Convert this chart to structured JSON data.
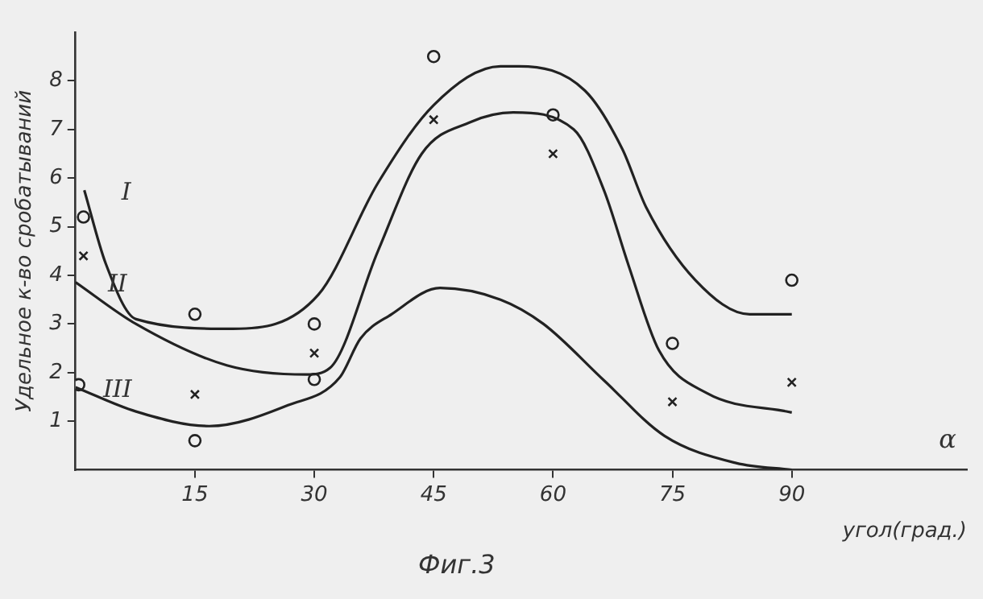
{
  "chart_data": {
    "type": "line",
    "xlabel": "угол(град.)",
    "ylabel": "Удельное к-во сробатываний",
    "xlim": [
      0,
      112
    ],
    "ylim": [
      0,
      9
    ],
    "xticks": [
      15,
      30,
      45,
      60,
      75,
      90
    ],
    "yticks": [
      1,
      2,
      3,
      4,
      5,
      6,
      7,
      8
    ],
    "grid": false,
    "legend": false,
    "marker": "none",
    "line_style": "solid",
    "series": [
      {
        "name": "I",
        "color": "#222222",
        "x": [
          1.1,
          3.8,
          7.6,
          19.8,
          30.5,
          38,
          45,
          53.4,
          55.7,
          64,
          68.7,
          71.7,
          77.9,
          84.7,
          90
        ],
        "values": [
          5.75,
          4.24,
          3.1,
          2.9,
          3.6,
          5.9,
          7.5,
          8.3,
          8.3,
          7.8,
          6.6,
          5.4,
          3.9,
          3.2,
          3.2
        ]
      },
      {
        "name": "II",
        "color": "#222222",
        "x": [
          0,
          7.6,
          19,
          29,
          32,
          38,
          43.5,
          49.6,
          55,
          62.6,
          66.4,
          69.5,
          73.3,
          79.3,
          90
        ],
        "values": [
          3.86,
          3.0,
          2.15,
          1.96,
          2.1,
          4.5,
          6.5,
          7.15,
          7.35,
          7.0,
          5.75,
          4.2,
          2.46,
          1.58,
          1.18
        ]
      },
      {
        "name": "III",
        "color": "#222222",
        "x": [
          0,
          7.6,
          16.8,
          26.7,
          33.2,
          35.8,
          39.7,
          45.8,
          53.4,
          58.8,
          66.4,
          74,
          83,
          90
        ],
        "values": [
          1.7,
          1.2,
          0.9,
          1.33,
          1.9,
          2.7,
          3.2,
          3.74,
          3.5,
          3.0,
          1.84,
          0.7,
          0.14,
          0
        ]
      },
      {
        "type": "scatter",
        "marker": "circle",
        "color": "#222222",
        "x": [
          1,
          15,
          30,
          45,
          60,
          75,
          90
        ],
        "values": [
          5.2,
          3.2,
          3.0,
          8.5,
          7.3,
          2.6,
          3.9
        ]
      },
      {
        "type": "scatter",
        "marker": "cross",
        "color": "#222222",
        "x": [
          1,
          15,
          30,
          45,
          60,
          75,
          90
        ],
        "values": [
          4.4,
          1.55,
          2.4,
          7.2,
          6.5,
          1.4,
          1.8
        ]
      },
      {
        "type": "scatter",
        "marker": "circle",
        "color": "#222222",
        "x": [
          0.4,
          15,
          30
        ],
        "values": [
          1.75,
          0.6,
          1.86
        ]
      }
    ],
    "annotations": [
      "α",
      "Фиг.3"
    ]
  }
}
